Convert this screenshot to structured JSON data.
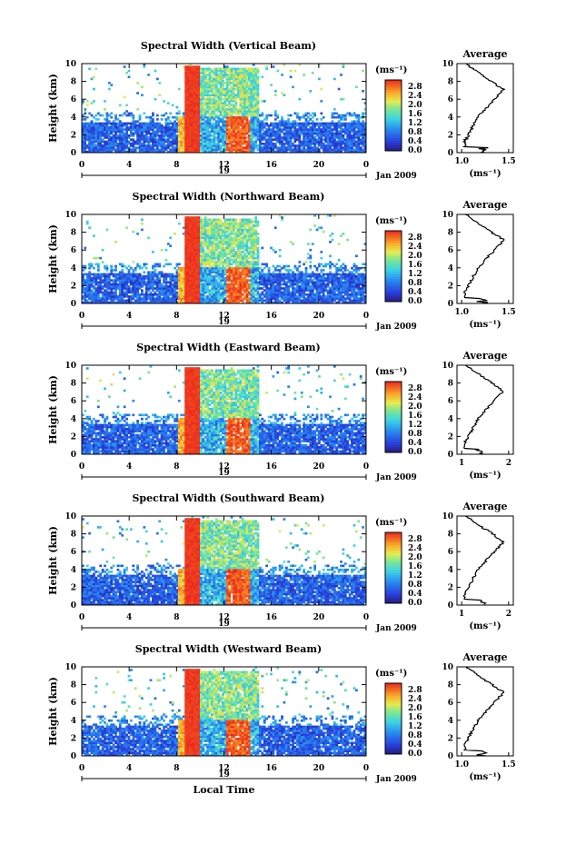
{
  "chart_data": [
    {
      "type": "heatmap",
      "title": "Spectral Width (Vertical Beam)",
      "ylabel": "Height (km)",
      "xticks": [
        "0",
        "4",
        "8",
        "12",
        "16",
        "20",
        "0"
      ],
      "yticks": [
        "0",
        "2",
        "4",
        "6",
        "8",
        "10"
      ],
      "xlim": [
        0,
        24
      ],
      "ylim": [
        0,
        10
      ],
      "day_label": "19",
      "date_label": "Jan 2009",
      "colorbar": {
        "unit": "(ms⁻¹)",
        "ticks": [
          "2.8",
          "2.4",
          "2.0",
          "1.6",
          "1.2",
          "0.8",
          "0.4",
          "0.0"
        ]
      },
      "average": {
        "title": "Average",
        "xlabel": "(ms⁻¹)",
        "xticks": [
          "1.0",
          "1.5"
        ],
        "xlim": [
          0.95,
          1.55
        ],
        "yticks": [
          "0",
          "2",
          "4",
          "6",
          "8",
          "10"
        ]
      }
    },
    {
      "type": "heatmap",
      "title": "Spectral Width (Northward Beam)",
      "ylabel": "Height (km)",
      "xticks": [
        "0",
        "4",
        "8",
        "12",
        "16",
        "20",
        "0"
      ],
      "yticks": [
        "0",
        "2",
        "4",
        "6",
        "8",
        "10"
      ],
      "xlim": [
        0,
        24
      ],
      "ylim": [
        0,
        10
      ],
      "day_label": "19",
      "date_label": "Jan 2009",
      "colorbar": {
        "unit": "(ms⁻¹)",
        "ticks": [
          "2.8",
          "2.4",
          "2.0",
          "1.6",
          "1.2",
          "0.8",
          "0.4",
          "0.0"
        ]
      },
      "average": {
        "title": "Average",
        "xlabel": "(ms⁻¹)",
        "xticks": [
          "1.0",
          "1.5"
        ],
        "xlim": [
          0.95,
          1.55
        ],
        "yticks": [
          "0",
          "2",
          "4",
          "6",
          "8",
          "10"
        ]
      }
    },
    {
      "type": "heatmap",
      "title": "Spectral Width (Eastward Beam)",
      "ylabel": "Height (km)",
      "xticks": [
        "0",
        "4",
        "8",
        "12",
        "16",
        "20",
        "0"
      ],
      "yticks": [
        "0",
        "2",
        "4",
        "6",
        "8",
        "10"
      ],
      "xlim": [
        0,
        24
      ],
      "ylim": [
        0,
        10
      ],
      "day_label": "19",
      "date_label": "Jan 2009",
      "colorbar": {
        "unit": "(ms⁻¹)",
        "ticks": [
          "2.8",
          "2.4",
          "2.0",
          "1.6",
          "1.2",
          "0.8",
          "0.4",
          "0.0"
        ]
      },
      "average": {
        "title": "Average",
        "xlabel": "(ms⁻¹)",
        "xticks": [
          "1",
          "2"
        ],
        "xlim": [
          0.9,
          2.1
        ],
        "yticks": [
          "0",
          "2",
          "4",
          "6",
          "8",
          "10"
        ]
      }
    },
    {
      "type": "heatmap",
      "title": "Spectral Width (Southward Beam)",
      "ylabel": "Height (km)",
      "xticks": [
        "0",
        "4",
        "8",
        "12",
        "16",
        "20",
        "0"
      ],
      "yticks": [
        "0",
        "2",
        "4",
        "6",
        "8",
        "10"
      ],
      "xlim": [
        0,
        24
      ],
      "ylim": [
        0,
        10
      ],
      "day_label": "19",
      "date_label": "Jan 2009",
      "colorbar": {
        "unit": "(ms⁻¹)",
        "ticks": [
          "2.8",
          "2.4",
          "2.0",
          "1.6",
          "1.2",
          "0.8",
          "0.4",
          "0.0"
        ]
      },
      "average": {
        "title": "Average",
        "xlabel": "(ms⁻¹)",
        "xticks": [
          "1",
          "2"
        ],
        "xlim": [
          0.9,
          2.1
        ],
        "yticks": [
          "0",
          "2",
          "4",
          "6",
          "8",
          "10"
        ]
      }
    },
    {
      "type": "heatmap",
      "title": "Spectral Width (Westward Beam)",
      "ylabel": "Height (km)",
      "xticks": [
        "0",
        "4",
        "8",
        "12",
        "16",
        "20",
        "0"
      ],
      "yticks": [
        "0",
        "2",
        "4",
        "6",
        "8",
        "10"
      ],
      "xlim": [
        0,
        24
      ],
      "ylim": [
        0,
        10
      ],
      "day_label": "19",
      "date_label": "Jan 2009",
      "xlabel": "Local Time",
      "colorbar": {
        "unit": "(ms⁻¹)",
        "ticks": [
          "2.8",
          "2.4",
          "2.0",
          "1.6",
          "1.2",
          "0.8",
          "0.4",
          "0.0"
        ]
      },
      "average": {
        "title": "Average",
        "xlabel": "(ms⁻¹)",
        "xticks": [
          "1.0",
          "1.5"
        ],
        "xlim": [
          0.95,
          1.55
        ],
        "yticks": [
          "0",
          "2",
          "4",
          "6",
          "8",
          "10"
        ]
      }
    }
  ]
}
